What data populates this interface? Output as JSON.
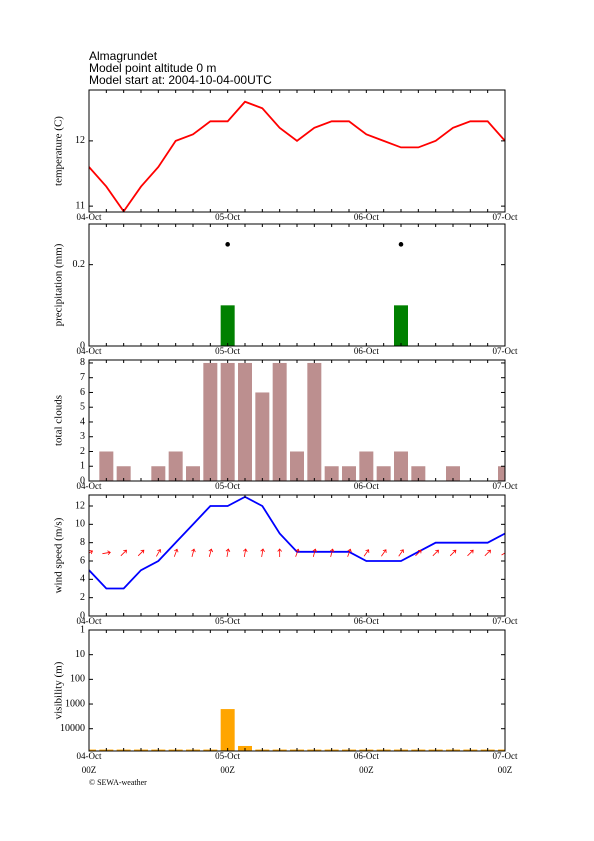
{
  "header": {
    "station": "Almagrundet",
    "altitude": "Model point altitude  0 m",
    "model_start": "Model start at: 2004-10-04-00UTC"
  },
  "footer": "© SEWA-weather",
  "chart_data": [
    {
      "type": "line",
      "ylabel": "temperature (C)",
      "categories": [
        "04-Oct",
        null,
        null,
        null,
        null,
        null,
        null,
        null,
        "05-Oct",
        null,
        null,
        null,
        null,
        null,
        null,
        null,
        "06-Oct",
        null,
        null,
        null,
        null,
        null,
        null,
        null,
        "07-Oct"
      ],
      "values": [
        11.6,
        11.3,
        10.92,
        11.3,
        11.6,
        12.0,
        12.1,
        12.3,
        12.3,
        12.6,
        12.5,
        12.2,
        12.0,
        12.2,
        12.3,
        12.3,
        12.1,
        12.0,
        11.9,
        11.9,
        12.0,
        12.2,
        12.3,
        12.3,
        12.0
      ],
      "color": "#ff0000",
      "ylim": [
        10.91,
        12.78
      ],
      "yticks": [
        11,
        12
      ]
    },
    {
      "type": "bar",
      "ylabel": "precipitation (mm)",
      "categories": [
        "04-Oct",
        null,
        null,
        null,
        null,
        null,
        null,
        null,
        "05-Oct",
        null,
        null,
        null,
        null,
        null,
        null,
        null,
        "06-Oct",
        null,
        null,
        null,
        null,
        null,
        null,
        null,
        "07-Oct"
      ],
      "values": [
        0,
        0,
        0,
        0,
        0,
        0,
        0,
        0,
        0.1,
        0,
        0,
        0,
        0,
        0,
        0,
        0,
        0,
        0,
        0.1,
        0,
        0,
        0,
        0,
        0,
        0
      ],
      "color": "#008000",
      "markers": {
        "color": "#000000",
        "values": [
          null,
          null,
          null,
          null,
          null,
          null,
          null,
          null,
          0.25,
          null,
          null,
          null,
          null,
          null,
          null,
          null,
          null,
          null,
          0.25,
          null,
          null,
          null,
          null,
          null,
          null
        ]
      },
      "ylim": [
        0,
        0.3
      ],
      "yticks": [
        0,
        0.2
      ]
    },
    {
      "type": "bar",
      "ylabel": "total clouds",
      "categories": [
        "04-Oct",
        null,
        null,
        null,
        null,
        null,
        null,
        null,
        "05-Oct",
        null,
        null,
        null,
        null,
        null,
        null,
        null,
        "06-Oct",
        null,
        null,
        null,
        null,
        null,
        null,
        null,
        "07-Oct"
      ],
      "values": [
        0,
        2,
        1,
        0,
        1,
        2,
        1,
        8,
        8,
        8,
        6,
        8,
        2,
        8,
        1,
        1,
        2,
        1,
        2,
        1,
        0,
        1,
        0,
        0,
        1
      ],
      "color": "#bc8f8f",
      "ylim": [
        0,
        8.2
      ],
      "yticks": [
        0,
        1,
        2,
        3,
        4,
        5,
        6,
        7,
        8
      ]
    },
    {
      "type": "line",
      "ylabel": "wind speed (m/s)",
      "categories": [
        "04-Oct",
        null,
        null,
        null,
        null,
        null,
        null,
        null,
        "05-Oct",
        null,
        null,
        null,
        null,
        null,
        null,
        null,
        "06-Oct",
        null,
        null,
        null,
        null,
        null,
        null,
        null,
        "07-Oct"
      ],
      "values": [
        5,
        3,
        3,
        5,
        6,
        8,
        10,
        12,
        12,
        13,
        12,
        9,
        7,
        7,
        7,
        7,
        6,
        6,
        6,
        7,
        8,
        8,
        8,
        8,
        9
      ],
      "color": "#0000ff",
      "arrows": {
        "color": "#ff0000",
        "values": [
          60,
          80,
          45,
          45,
          30,
          20,
          15,
          15,
          10,
          10,
          10,
          0,
          20,
          15,
          15,
          20,
          35,
          35,
          35,
          45,
          45,
          45,
          45,
          45,
          60
        ]
      },
      "ylim": [
        0,
        13.2
      ],
      "yticks": [
        0,
        2,
        4,
        6,
        8,
        10,
        12
      ]
    },
    {
      "type": "bar",
      "ylabel": "visibility (m)",
      "categories": [
        "04-Oct",
        null,
        null,
        null,
        null,
        null,
        null,
        null,
        "05-Oct",
        null,
        null,
        null,
        null,
        null,
        null,
        null,
        "06-Oct",
        null,
        null,
        null,
        null,
        null,
        null,
        null,
        "07-Oct"
      ],
      "sublabels": [
        "00Z",
        null,
        null,
        null,
        null,
        null,
        null,
        null,
        "00Z",
        null,
        null,
        null,
        null,
        null,
        null,
        null,
        "00Z",
        null,
        null,
        null,
        null,
        null,
        null,
        null,
        "00Z"
      ],
      "values": [
        70000,
        70000,
        70000,
        70000,
        70000,
        70000,
        70000,
        70000,
        1600,
        50000,
        70000,
        70000,
        70000,
        70000,
        70000,
        70000,
        70000,
        70000,
        70000,
        70000,
        70000,
        70000,
        70000,
        70000,
        70000
      ],
      "color": "#ffa500",
      "log_scale": true,
      "y_inverted": true,
      "ylim": [
        1,
        80000
      ],
      "yticks": [
        1,
        10,
        100,
        1000,
        10000
      ]
    }
  ]
}
